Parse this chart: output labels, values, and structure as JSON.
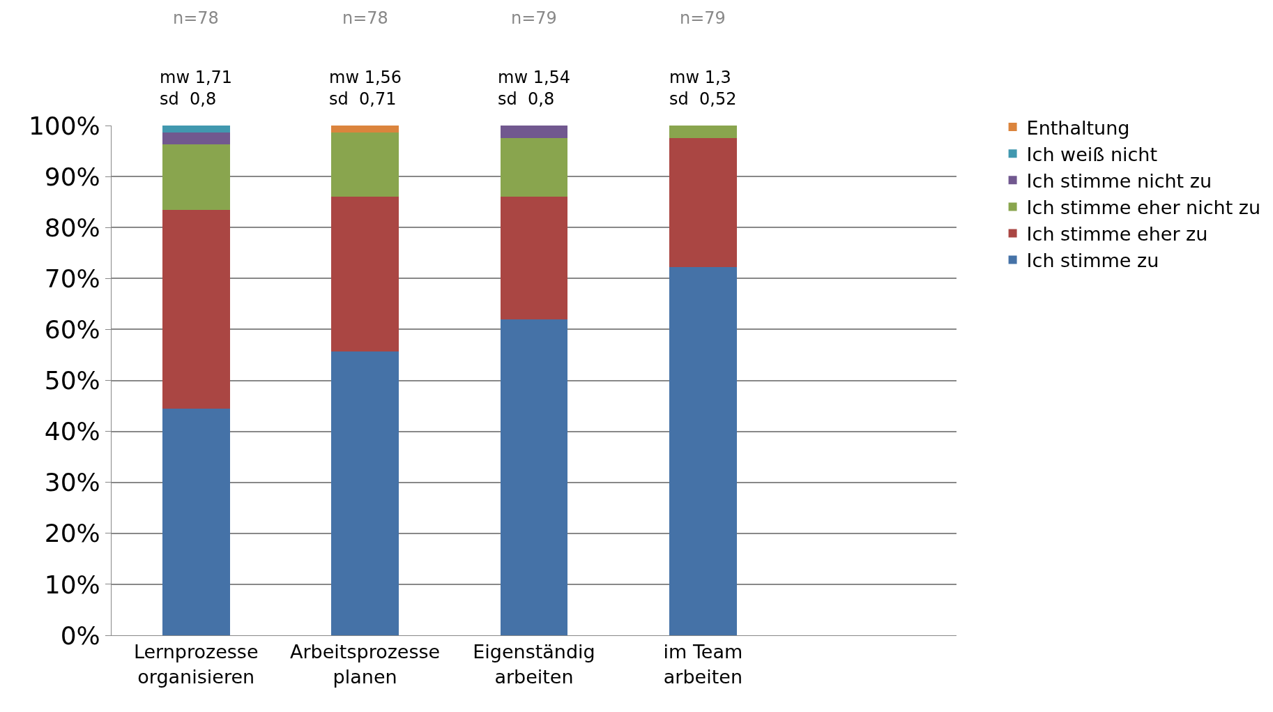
{
  "chart_data": {
    "type": "bar",
    "stacked": true,
    "categories": [
      "Lernprozesse organisieren",
      "Arbeitsprozesse planen",
      "Eigenständig arbeiten",
      "im Team arbeiten",
      null
    ],
    "series": [
      {
        "name": "Ich stimme zu",
        "color": "#4572a7",
        "values": [
          44.5,
          55.7,
          62,
          72.2,
          null
        ]
      },
      {
        "name": "Ich stimme eher zu",
        "color": "#aa4643",
        "values": [
          39,
          30.4,
          24.1,
          25.3,
          null
        ]
      },
      {
        "name": "Ich stimme eher nicht zu",
        "color": "#89a54e",
        "values": [
          12.8,
          12.6,
          11.4,
          2.5,
          null
        ]
      },
      {
        "name": "Ich stimme nicht zu",
        "color": "#71588f",
        "values": [
          2.4,
          null,
          2.5,
          null,
          null
        ]
      },
      {
        "name": "Ich weiß nicht",
        "color": "#4198af",
        "values": [
          1.3,
          null,
          null,
          null,
          null
        ]
      },
      {
        "name": "Enthaltung",
        "color": "#db843d",
        "values": [
          null,
          1.3,
          null,
          null,
          null
        ]
      }
    ],
    "ylim": [
      0,
      100
    ],
    "yticks": [
      {
        "value": 0,
        "label": "0%"
      },
      {
        "value": 10,
        "label": "10%"
      },
      {
        "value": 20,
        "label": "20%"
      },
      {
        "value": 30,
        "label": "30%"
      },
      {
        "value": 40,
        "label": "40%"
      },
      {
        "value": 50,
        "label": "50%"
      },
      {
        "value": 60,
        "label": "60%"
      },
      {
        "value": 70,
        "label": "70%"
      },
      {
        "value": 80,
        "label": "80%"
      },
      {
        "value": 90,
        "label": "90%"
      },
      {
        "value": 100,
        "label": "100%"
      }
    ],
    "grid": "y",
    "legend": "right",
    "annotations": [
      "n=78",
      "mw 1,71\nsd  0,8",
      "n=78",
      "mw 1,56\nsd  0,71",
      "n=79",
      "mw 1,54\nsd  0,8",
      "n=79",
      "mw 1,3\nsd  0,52"
    ]
  }
}
